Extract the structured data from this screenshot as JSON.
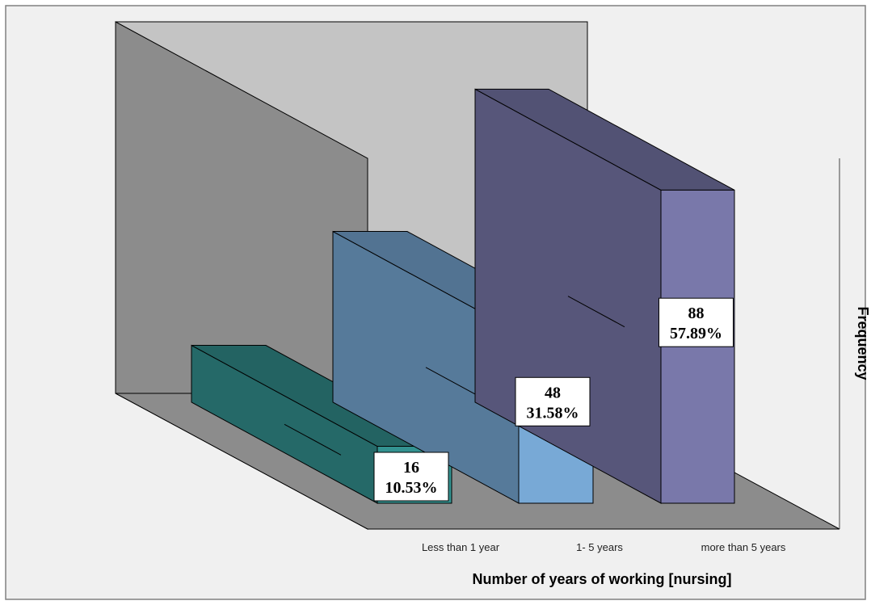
{
  "chart_data": {
    "type": "bar",
    "style": "3d",
    "title": "",
    "xlabel": "Number of years of working [nursing]",
    "ylabel": "Frequency",
    "categories": [
      "Less than 1 year",
      "1- 5 years",
      "more than 5 years"
    ],
    "values": [
      16,
      48,
      88
    ],
    "percent_labels": [
      "10.53%",
      "31.58%",
      "57.89%"
    ],
    "ylim": [
      0,
      110
    ],
    "legend": "none",
    "grid": false,
    "colors": {
      "bars": [
        "#339290",
        "#78A9D6",
        "#7978AA"
      ],
      "floor": "#8c8c8c",
      "left_wall": "#8c8c8c",
      "back_wall": "#c4c4c4",
      "plot_background": "#f0f0f0",
      "frame": "#808080"
    }
  }
}
